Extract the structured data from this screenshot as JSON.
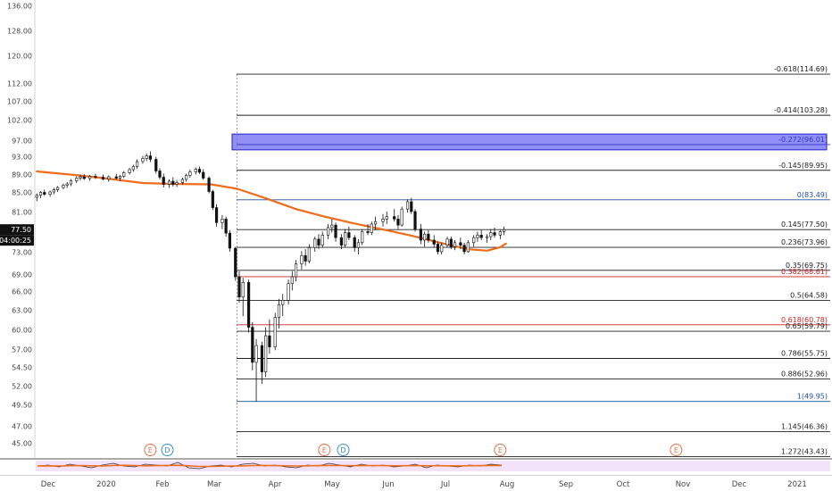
{
  "chart_data": {
    "type": "candlestick",
    "y_axis": {
      "ticks": [
        "136.00",
        "128.00",
        "120.00",
        "112.00",
        "107.00",
        "102.00",
        "97.00",
        "93.00",
        "89.00",
        "85.00",
        "81.00",
        "73.00",
        "69.00",
        "66.00",
        "63.00",
        "60.00",
        "57.00",
        "54.50",
        "52.00",
        "49.50",
        "47.00",
        "45.00"
      ],
      "price_label": "77.50",
      "countdown_label": "04:00:25"
    },
    "x_axis": {
      "ticks": [
        "Dec",
        "2020",
        "Feb",
        "Mar",
        "Apr",
        "May",
        "Jun",
        "Jul",
        "Aug",
        "Sep",
        "Oct",
        "Nov",
        "Dec",
        "2021"
      ]
    },
    "fib_levels": [
      {
        "label": "-0.618(114.69)",
        "value": 114.69,
        "color": "#222222"
      },
      {
        "label": "-0.414(103.28)",
        "value": 103.28,
        "color": "#222222"
      },
      {
        "label": "-0.272(96.01)",
        "value": 96.01,
        "color": "#3333bb"
      },
      {
        "label": "-0.145(89.95)",
        "value": 89.95,
        "color": "#222222"
      },
      {
        "label": "0(83.49)",
        "value": 83.49,
        "color": "#1f4e9c"
      },
      {
        "label": "0.145(77.50)",
        "value": 77.5,
        "color": "#222222"
      },
      {
        "label": "0.236(73.96)",
        "value": 73.96,
        "color": "#222222"
      },
      {
        "label": "0.35(69.75)",
        "value": 69.75,
        "color": "#222222"
      },
      {
        "label": "0.382(68.61)",
        "value": 68.61,
        "color": "#cc2222"
      },
      {
        "label": "0.5(64.58)",
        "value": 64.58,
        "color": "#222222"
      },
      {
        "label": "0.618(60.78)",
        "value": 60.78,
        "color": "#cc2222"
      },
      {
        "label": "0.65(59.79)",
        "value": 59.79,
        "color": "#222222"
      },
      {
        "label": "0.786(55.75)",
        "value": 55.75,
        "color": "#222222"
      },
      {
        "label": "0.886(52.96)",
        "value": 52.96,
        "color": "#222222"
      },
      {
        "label": "1(49.95)",
        "value": 49.95,
        "color": "#1f4e9c"
      },
      {
        "label": "1.145(46.36)",
        "value": 46.36,
        "color": "#222222"
      },
      {
        "label": "1.272(43.43)",
        "value": 43.43,
        "color": "#222222"
      }
    ],
    "highlight_zone": {
      "from": 94.7,
      "to": 98.6,
      "color": "#3333ee"
    },
    "moving_average": {
      "color": "#ef6c1a",
      "points": [
        [
          "2019-11-25",
          89.7
        ],
        [
          "2019-12-15",
          88.9
        ],
        [
          "2020-01-01",
          88.1
        ],
        [
          "2020-01-20",
          87.1
        ],
        [
          "2020-02-05",
          86.9
        ],
        [
          "2020-02-25",
          86.8
        ],
        [
          "2020-03-10",
          85.8
        ],
        [
          "2020-03-25",
          83.8
        ],
        [
          "2020-04-10",
          81.6
        ],
        [
          "2020-04-25",
          80.1
        ],
        [
          "2020-05-10",
          78.8
        ],
        [
          "2020-05-25",
          77.6
        ],
        [
          "2020-06-10",
          76.3
        ],
        [
          "2020-06-25",
          74.9
        ],
        [
          "2020-07-10",
          73.6
        ],
        [
          "2020-07-20",
          73.3
        ],
        [
          "2020-07-27",
          74.0
        ],
        [
          "2020-07-30",
          74.7
        ]
      ]
    },
    "candles": [
      [
        "2019-11-25",
        84.0,
        84.8,
        83.2,
        84.4
      ],
      [
        "2019-11-27",
        84.4,
        85.3,
        83.8,
        85.0
      ],
      [
        "2019-11-29",
        85.0,
        85.6,
        84.3,
        84.6
      ],
      [
        "2019-12-02",
        84.6,
        85.4,
        84.1,
        85.1
      ],
      [
        "2019-12-04",
        85.1,
        86.0,
        84.6,
        85.6
      ],
      [
        "2019-12-06",
        85.6,
        86.4,
        85.1,
        86.1
      ],
      [
        "2019-12-09",
        86.1,
        87.0,
        85.7,
        86.6
      ],
      [
        "2019-12-11",
        86.6,
        87.3,
        86.0,
        86.9
      ],
      [
        "2019-12-13",
        86.9,
        88.0,
        86.4,
        87.6
      ],
      [
        "2019-12-16",
        87.6,
        88.6,
        87.1,
        88.2
      ],
      [
        "2019-12-18",
        88.2,
        89.0,
        87.7,
        88.5
      ],
      [
        "2019-12-20",
        88.5,
        89.1,
        87.8,
        88.1
      ],
      [
        "2019-12-23",
        88.1,
        88.9,
        87.6,
        88.6
      ],
      [
        "2019-12-26",
        88.6,
        89.2,
        88.0,
        88.4
      ],
      [
        "2019-12-30",
        88.4,
        89.0,
        87.7,
        88.0
      ],
      [
        "2020-01-02",
        88.0,
        88.8,
        87.4,
        88.5
      ],
      [
        "2020-01-06",
        88.5,
        89.2,
        87.9,
        88.2
      ],
      [
        "2020-01-08",
        88.2,
        88.9,
        87.5,
        88.6
      ],
      [
        "2020-01-10",
        88.6,
        89.8,
        88.2,
        89.4
      ],
      [
        "2020-01-13",
        89.4,
        90.5,
        89.0,
        90.1
      ],
      [
        "2020-01-15",
        90.1,
        91.2,
        89.6,
        90.8
      ],
      [
        "2020-01-17",
        90.8,
        92.4,
        90.3,
        91.9
      ],
      [
        "2020-01-20",
        91.9,
        93.2,
        91.4,
        92.6
      ],
      [
        "2020-01-22",
        92.6,
        93.8,
        92.0,
        93.2
      ],
      [
        "2020-01-24",
        93.2,
        94.3,
        91.8,
        92.4
      ],
      [
        "2020-01-27",
        92.4,
        93.0,
        89.2,
        89.8
      ],
      [
        "2020-01-29",
        89.8,
        90.4,
        87.9,
        88.4
      ],
      [
        "2020-01-31",
        88.4,
        89.2,
        86.1,
        86.8
      ],
      [
        "2020-02-03",
        86.8,
        87.9,
        86.0,
        87.5
      ],
      [
        "2020-02-05",
        87.5,
        88.4,
        86.3,
        86.8
      ],
      [
        "2020-02-07",
        86.8,
        87.8,
        86.2,
        87.2
      ],
      [
        "2020-02-10",
        87.2,
        88.3,
        86.7,
        87.9
      ],
      [
        "2020-02-12",
        87.9,
        89.2,
        87.4,
        88.8
      ],
      [
        "2020-02-14",
        88.8,
        90.1,
        88.3,
        89.6
      ],
      [
        "2020-02-17",
        89.6,
        90.6,
        89.0,
        90.2
      ],
      [
        "2020-02-19",
        90.2,
        90.8,
        89.1,
        89.5
      ],
      [
        "2020-02-21",
        89.5,
        90.2,
        87.8,
        88.2
      ],
      [
        "2020-02-24",
        88.2,
        88.6,
        84.8,
        85.2
      ],
      [
        "2020-02-26",
        85.2,
        85.6,
        81.4,
        81.9
      ],
      [
        "2020-02-28",
        81.9,
        82.6,
        78.1,
        78.9
      ],
      [
        "2020-03-02",
        78.9,
        80.4,
        77.6,
        79.6
      ],
      [
        "2020-03-04",
        79.6,
        80.1,
        76.1,
        76.8
      ],
      [
        "2020-03-06",
        76.8,
        77.4,
        73.1,
        73.8
      ],
      [
        "2020-03-09",
        73.8,
        74.1,
        67.9,
        68.6
      ],
      [
        "2020-03-11",
        68.6,
        69.6,
        64.2,
        65.1
      ],
      [
        "2020-03-13",
        65.1,
        68.4,
        62.1,
        67.6
      ],
      [
        "2020-03-16",
        67.6,
        68.1,
        59.6,
        60.4
      ],
      [
        "2020-03-18",
        60.4,
        61.2,
        54.1,
        55.2
      ],
      [
        "2020-03-20",
        55.2,
        58.6,
        49.95,
        57.6
      ],
      [
        "2020-03-23",
        57.6,
        58.2,
        52.3,
        53.9
      ],
      [
        "2020-03-25",
        53.9,
        60.4,
        53.2,
        59.1
      ],
      [
        "2020-03-27",
        59.1,
        61.6,
        56.4,
        57.4
      ],
      [
        "2020-03-30",
        57.4,
        62.6,
        56.9,
        61.9
      ],
      [
        "2020-04-01",
        61.9,
        64.8,
        60.2,
        63.9
      ],
      [
        "2020-04-03",
        63.9,
        65.6,
        62.1,
        64.6
      ],
      [
        "2020-04-06",
        64.6,
        68.1,
        63.9,
        67.4
      ],
      [
        "2020-04-08",
        67.4,
        69.6,
        66.2,
        68.6
      ],
      [
        "2020-04-10",
        68.6,
        71.6,
        67.8,
        70.9
      ],
      [
        "2020-04-13",
        70.9,
        73.2,
        69.9,
        72.4
      ],
      [
        "2020-04-15",
        72.4,
        73.6,
        70.6,
        71.4
      ],
      [
        "2020-04-17",
        71.4,
        74.6,
        71.0,
        73.9
      ],
      [
        "2020-04-20",
        73.9,
        76.1,
        73.1,
        75.6
      ],
      [
        "2020-04-22",
        75.6,
        76.6,
        73.6,
        74.4
      ],
      [
        "2020-04-24",
        74.4,
        77.1,
        73.9,
        76.4
      ],
      [
        "2020-04-27",
        76.4,
        78.6,
        75.6,
        77.9
      ],
      [
        "2020-04-29",
        77.9,
        79.6,
        76.9,
        78.4
      ],
      [
        "2020-05-01",
        78.4,
        78.9,
        75.1,
        75.9
      ],
      [
        "2020-05-04",
        75.9,
        76.6,
        73.6,
        74.4
      ],
      [
        "2020-05-06",
        74.4,
        77.6,
        73.9,
        76.9
      ],
      [
        "2020-05-08",
        76.9,
        78.1,
        75.4,
        75.9
      ],
      [
        "2020-05-11",
        75.9,
        76.4,
        73.1,
        73.9
      ],
      [
        "2020-05-13",
        73.9,
        75.6,
        72.6,
        74.9
      ],
      [
        "2020-05-15",
        74.9,
        77.6,
        74.4,
        77.1
      ],
      [
        "2020-05-18",
        77.1,
        78.6,
        76.4,
        76.9
      ],
      [
        "2020-05-20",
        76.9,
        79.1,
        76.4,
        78.6
      ],
      [
        "2020-05-22",
        78.6,
        80.1,
        77.4,
        79.1
      ],
      [
        "2020-05-26",
        79.1,
        80.6,
        78.1,
        79.6
      ],
      [
        "2020-05-28",
        79.6,
        81.1,
        78.6,
        80.1
      ],
      [
        "2020-06-01",
        80.1,
        81.6,
        79.1,
        79.6
      ],
      [
        "2020-06-03",
        79.6,
        80.4,
        77.6,
        78.4
      ],
      [
        "2020-06-05",
        78.4,
        82.1,
        78.1,
        81.6
      ],
      [
        "2020-06-08",
        81.6,
        83.6,
        80.9,
        83.1
      ],
      [
        "2020-06-10",
        83.1,
        83.9,
        80.6,
        81.1
      ],
      [
        "2020-06-12",
        81.1,
        81.6,
        77.1,
        77.6
      ],
      [
        "2020-06-15",
        77.6,
        78.6,
        74.6,
        75.4
      ],
      [
        "2020-06-17",
        75.4,
        77.1,
        74.1,
        76.6
      ],
      [
        "2020-06-19",
        76.6,
        77.4,
        74.9,
        75.4
      ],
      [
        "2020-06-22",
        75.4,
        76.4,
        73.9,
        74.6
      ],
      [
        "2020-06-24",
        74.6,
        75.1,
        72.6,
        73.1
      ],
      [
        "2020-06-26",
        73.1,
        74.9,
        72.6,
        74.4
      ],
      [
        "2020-06-29",
        74.4,
        76.1,
        73.9,
        75.6
      ],
      [
        "2020-07-01",
        75.6,
        76.1,
        73.6,
        74.1
      ],
      [
        "2020-07-03",
        74.1,
        75.4,
        73.4,
        74.9
      ],
      [
        "2020-07-06",
        74.9,
        75.9,
        73.6,
        74.4
      ],
      [
        "2020-07-08",
        74.4,
        74.9,
        72.6,
        73.1
      ],
      [
        "2020-07-10",
        73.1,
        75.4,
        72.9,
        74.9
      ],
      [
        "2020-07-13",
        74.9,
        76.4,
        74.1,
        75.9
      ],
      [
        "2020-07-15",
        75.9,
        77.1,
        75.1,
        76.4
      ],
      [
        "2020-07-17",
        76.4,
        77.4,
        75.4,
        75.9
      ],
      [
        "2020-07-20",
        75.9,
        76.6,
        74.9,
        76.1
      ],
      [
        "2020-07-22",
        76.1,
        77.6,
        75.4,
        76.9
      ],
      [
        "2020-07-24",
        76.9,
        77.9,
        75.9,
        76.4
      ],
      [
        "2020-07-27",
        76.4,
        77.4,
        75.6,
        77.1
      ],
      [
        "2020-07-29",
        77.1,
        78.1,
        76.4,
        77.5
      ]
    ],
    "events": [
      {
        "date": "2020-01-24",
        "label": "E",
        "color": "#e8734a"
      },
      {
        "date": "2020-02-02",
        "label": "D",
        "color": "#3d8fd6"
      },
      {
        "date": "2020-04-25",
        "label": "E",
        "color": "#e8734a"
      },
      {
        "date": "2020-05-05",
        "label": "D",
        "color": "#3d8fd6"
      },
      {
        "date": "2020-07-27",
        "label": "E",
        "color": "#e8734a"
      },
      {
        "date": "2020-10-28",
        "label": "E",
        "color": "#e8734a"
      }
    ],
    "oscillator": {
      "series": [
        {
          "color": "#333333",
          "values": [
            0.5,
            0.6,
            0.4,
            0.7,
            0.5,
            0.3,
            0.6,
            0.8,
            0.5,
            0.4,
            0.7,
            0.6,
            0.5,
            0.9,
            0.3,
            0.2,
            0.5,
            0.6,
            0.4,
            0.7,
            0.8,
            0.5,
            0.6,
            0.4,
            0.3,
            0.6,
            0.5,
            0.8,
            0.6,
            0.4,
            0.7,
            0.5,
            0.6,
            0.4,
            0.5,
            0.7,
            0.3,
            0.6,
            0.5,
            0.4,
            0.6,
            0.5,
            0.7,
            0.6
          ]
        },
        {
          "color": "#ef6c1a",
          "values": [
            0.5,
            0.52,
            0.5,
            0.53,
            0.55,
            0.52,
            0.5,
            0.55,
            0.58,
            0.55,
            0.52,
            0.54,
            0.56,
            0.58,
            0.52,
            0.45,
            0.45,
            0.48,
            0.5,
            0.52,
            0.55,
            0.56,
            0.54,
            0.52,
            0.5,
            0.52,
            0.54,
            0.56,
            0.55,
            0.53,
            0.54,
            0.55,
            0.54,
            0.52,
            0.53,
            0.55,
            0.52,
            0.53,
            0.52,
            0.51,
            0.53,
            0.54,
            0.56,
            0.55
          ]
        }
      ]
    }
  }
}
